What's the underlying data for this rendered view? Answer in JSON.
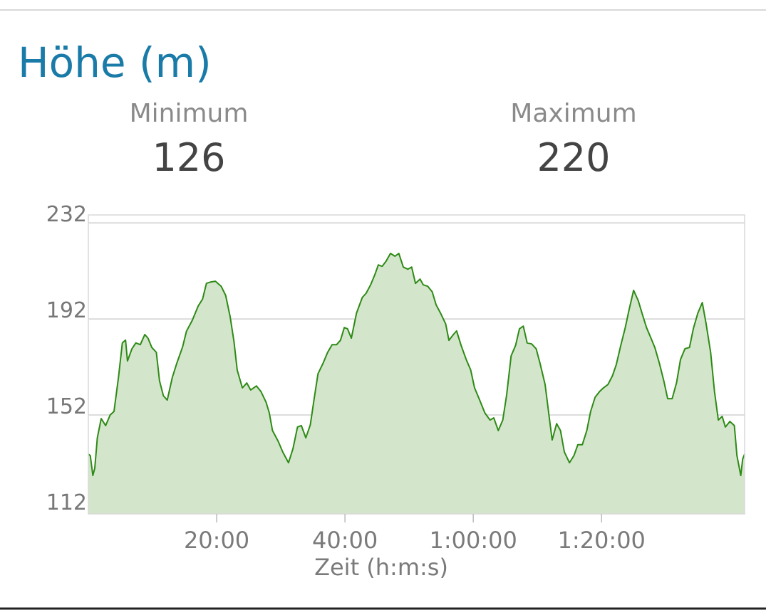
{
  "chart_data": {
    "type": "area",
    "title": "Höhe (m)",
    "stats": [
      {
        "label": "Minimum",
        "value": 126
      },
      {
        "label": "Maximum",
        "value": 220
      }
    ],
    "xlabel": "Zeit (h:m:s)",
    "x": [
      0.0,
      0.3,
      0.7,
      1.0,
      1.4,
      2.0,
      2.7,
      3.4,
      4.0,
      4.7,
      5.3,
      5.8,
      6.1,
      6.8,
      7.4,
      8.1,
      8.8,
      9.3,
      9.9,
      10.6,
      11.1,
      11.7,
      12.3,
      13.1,
      13.8,
      14.7,
      15.3,
      16.2,
      17.1,
      17.8,
      18.4,
      19.1,
      19.8,
      20.7,
      21.4,
      22.1,
      22.7,
      23.2,
      24.0,
      24.7,
      25.3,
      26.2,
      26.9,
      27.7,
      28.2,
      28.7,
      29.6,
      30.3,
      31.2,
      31.9,
      32.6,
      33.2,
      33.9,
      34.6,
      35.2,
      35.8,
      36.6,
      37.3,
      38.0,
      38.7,
      39.3,
      39.9,
      40.4,
      41.0,
      41.8,
      42.7,
      43.3,
      44.0,
      44.7,
      45.2,
      45.8,
      46.4,
      47.1,
      47.8,
      48.4,
      49.1,
      49.8,
      50.4,
      51.0,
      51.7,
      52.2,
      52.9,
      53.6,
      54.2,
      54.9,
      55.7,
      56.2,
      56.9,
      57.4,
      58.1,
      58.9,
      59.6,
      60.2,
      61.0,
      61.8,
      62.6,
      63.2,
      63.9,
      64.6,
      65.2,
      65.9,
      66.6,
      67.2,
      67.8,
      68.4,
      69.1,
      69.8,
      70.4,
      71.2,
      71.9,
      72.3,
      73.0,
      73.6,
      74.2,
      75.0,
      75.7,
      76.3,
      77.0,
      77.7,
      78.3,
      79.0,
      79.7,
      80.3,
      81.0,
      81.7,
      82.3,
      83.0,
      83.7,
      84.3,
      85.0,
      85.7,
      86.3,
      87.0,
      87.7,
      88.3,
      89.0,
      89.7,
      90.3,
      91.0,
      91.7,
      92.3,
      93.0,
      93.7,
      94.3,
      95.0,
      95.7,
      96.3,
      97.0,
      97.6,
      98.2,
      98.8,
      99.3,
      100.0,
      100.7,
      101.1,
      101.7,
      102.0,
      102.3
    ],
    "series": [
      {
        "name": "Höhe",
        "color": "#2e8a16",
        "fill": "#d3e6cb",
        "values": [
          135.7,
          135.1,
          126.8,
          129.8,
          142.5,
          150.5,
          147.6,
          152.0,
          153.5,
          167.7,
          182.0,
          183.2,
          174.5,
          179.6,
          182.0,
          181.3,
          185.5,
          184.0,
          180.1,
          178.1,
          166.2,
          160.0,
          158.2,
          167.7,
          173.6,
          180.4,
          186.9,
          191.4,
          197.3,
          200.3,
          206.8,
          207.4,
          207.7,
          205.6,
          201.8,
          192.9,
          182.5,
          170.7,
          163.3,
          165.3,
          162.4,
          164.1,
          161.8,
          157.3,
          152.9,
          145.5,
          141.0,
          136.6,
          132.1,
          138.0,
          147.0,
          147.6,
          142.5,
          147.9,
          158.8,
          169.2,
          173.6,
          178.1,
          181.3,
          181.3,
          183.1,
          188.4,
          187.9,
          184.0,
          194.4,
          200.9,
          202.7,
          206.2,
          210.7,
          214.5,
          213.9,
          216.0,
          219.3,
          218.1,
          219.3,
          213.6,
          212.7,
          213.6,
          206.8,
          208.6,
          206.2,
          205.6,
          203.3,
          197.9,
          194.4,
          189.9,
          183.1,
          185.5,
          187.0,
          181.0,
          175.1,
          170.7,
          163.3,
          158.2,
          152.9,
          149.9,
          150.8,
          145.5,
          149.9,
          160.3,
          176.6,
          181.0,
          187.9,
          189.0,
          182.0,
          181.6,
          179.6,
          173.6,
          164.7,
          149.9,
          141.6,
          148.4,
          145.5,
          136.6,
          132.1,
          135.1,
          139.6,
          139.6,
          145.5,
          153.5,
          159.4,
          161.8,
          163.3,
          164.7,
          168.3,
          173.0,
          181.0,
          188.4,
          195.9,
          203.9,
          199.7,
          194.4,
          188.4,
          184.0,
          180.1,
          173.6,
          166.2,
          158.8,
          158.8,
          165.6,
          175.1,
          179.6,
          180.1,
          187.9,
          194.4,
          198.8,
          189.9,
          178.1,
          161.8,
          149.9,
          151.4,
          147.0,
          149.3,
          147.6,
          135.1,
          126.8,
          133.7,
          135.7
        ]
      }
    ],
    "xlim": [
      0,
      102.3
    ],
    "xticks": [
      {
        "value": 20,
        "label": "20:00"
      },
      {
        "value": 40,
        "label": "40:00"
      },
      {
        "value": 60,
        "label": "1:00:00"
      },
      {
        "value": 80,
        "label": "1:20:00"
      }
    ],
    "ylim": [
      110.8,
      235.3
    ],
    "yticks": [
      112,
      152,
      192,
      232
    ],
    "grid": true
  }
}
